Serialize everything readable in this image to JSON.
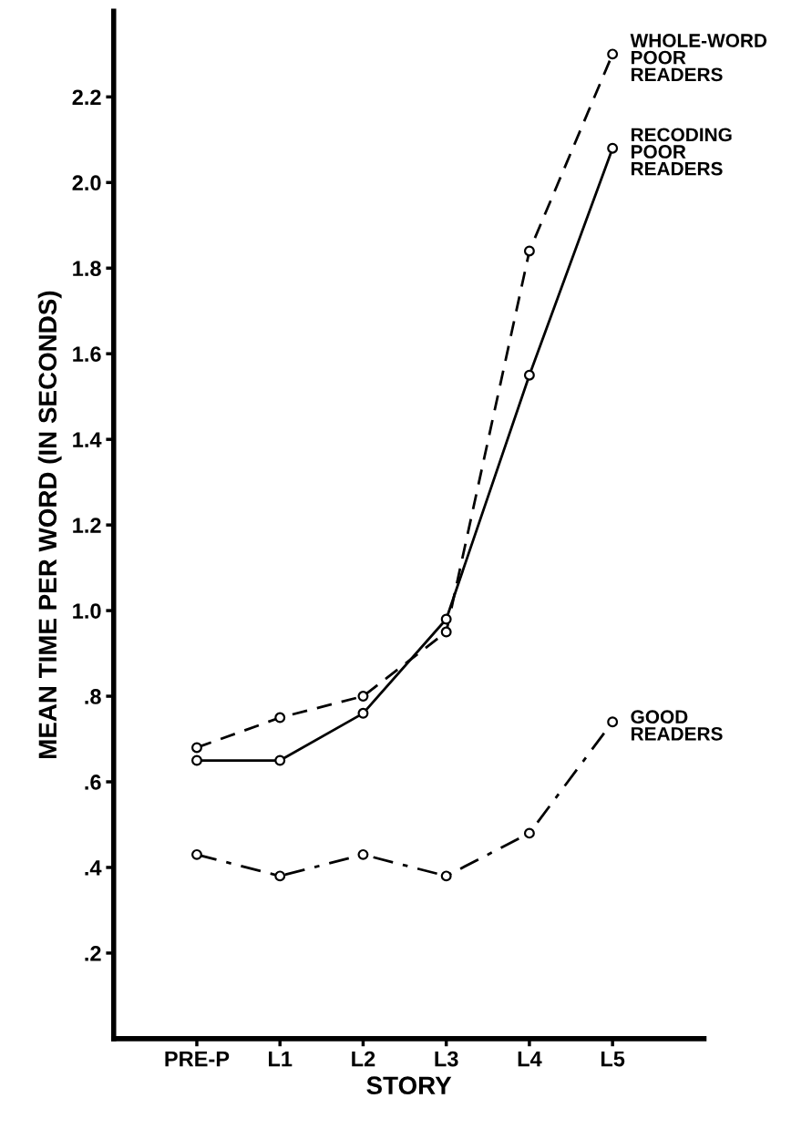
{
  "chart_data": {
    "type": "line",
    "xlabel": "STORY",
    "ylabel": "MEAN TIME PER WORD (IN SECONDS)",
    "categories": [
      "PRE-P",
      "L1",
      "L2",
      "L3",
      "L4",
      "L5"
    ],
    "series": [
      {
        "name": "WHOLE-WORD\nPOOR\nREADERS",
        "color": "#000000",
        "line_style": "dashed",
        "values": [
          0.68,
          0.75,
          0.8,
          0.95,
          1.84,
          2.3
        ]
      },
      {
        "name": "RECODING\nPOOR\nREADERS",
        "color": "#000000",
        "line_style": "solid",
        "values": [
          0.65,
          0.65,
          0.76,
          0.98,
          1.55,
          2.08
        ]
      },
      {
        "name": "GOOD\nREADERS",
        "color": "#000000",
        "line_style": "dashdot",
        "values": [
          0.43,
          0.38,
          0.43,
          0.38,
          0.48,
          0.74
        ]
      }
    ],
    "marker": "circle",
    "grid": false,
    "legend": false,
    "ylim": [
      0,
      2.4
    ],
    "yticks": [
      {
        "value": 0.2,
        "label": ".2"
      },
      {
        "value": 0.4,
        "label": ".4"
      },
      {
        "value": 0.6,
        "label": ".6"
      },
      {
        "value": 0.8,
        "label": ".8"
      },
      {
        "value": 1.0,
        "label": "1.0"
      },
      {
        "value": 1.2,
        "label": "1.2"
      },
      {
        "value": 1.4,
        "label": "1.4"
      },
      {
        "value": 1.6,
        "label": "1.6"
      },
      {
        "value": 1.8,
        "label": "1.8"
      },
      {
        "value": 2.0,
        "label": "2.0"
      },
      {
        "value": 2.2,
        "label": "2.2"
      }
    ]
  }
}
